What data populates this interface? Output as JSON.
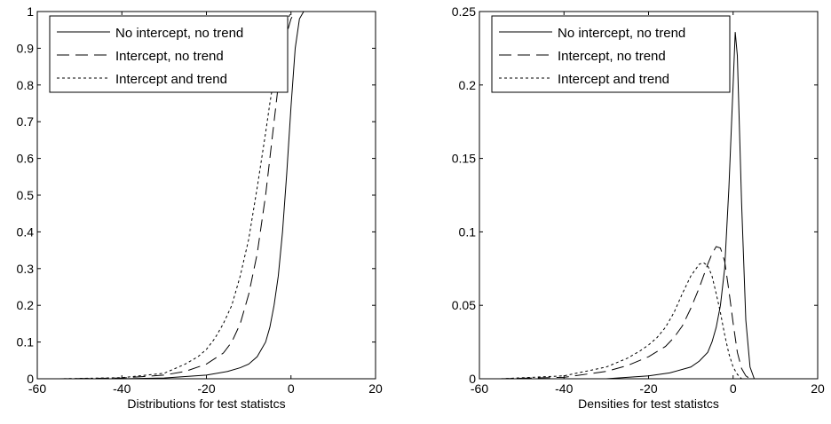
{
  "chart_data": [
    {
      "type": "line",
      "title": "",
      "xlabel": "Distributions for test statistcs",
      "ylabel": "",
      "xlim": [
        -60,
        20
      ],
      "ylim": [
        0,
        1
      ],
      "xticks": [
        -60,
        -40,
        -20,
        0,
        20
      ],
      "yticks": [
        0,
        0.1,
        0.2,
        0.3,
        0.4,
        0.5,
        0.6,
        0.7,
        0.8,
        0.9,
        1
      ],
      "xtick_labels": [
        "-60",
        "-40",
        "-20",
        "0",
        "20"
      ],
      "ytick_labels": [
        "0",
        "0.1",
        "0.2",
        "0.3",
        "0.4",
        "0.5",
        "0.6",
        "0.7",
        "0.8",
        "0.9",
        "1"
      ],
      "grid": false,
      "legend_position": "top-left",
      "series": [
        {
          "name": "No intercept, no trend",
          "style": "solid",
          "x": [
            -55,
            -40,
            -30,
            -20,
            -15,
            -12,
            -10,
            -8,
            -6,
            -5,
            -4,
            -3,
            -2,
            -1,
            0,
            1,
            2,
            3
          ],
          "y": [
            0.0,
            0.0,
            0.002,
            0.01,
            0.02,
            0.03,
            0.04,
            0.06,
            0.1,
            0.14,
            0.2,
            0.28,
            0.4,
            0.56,
            0.74,
            0.9,
            0.98,
            1.0
          ]
        },
        {
          "name": "Intercept, no trend",
          "style": "dashed",
          "x": [
            -55,
            -40,
            -30,
            -25,
            -20,
            -16,
            -14,
            -12,
            -10,
            -8,
            -6,
            -5,
            -4,
            -3,
            -2,
            -1,
            0,
            1
          ],
          "y": [
            0.0,
            0.002,
            0.01,
            0.02,
            0.04,
            0.07,
            0.1,
            0.15,
            0.23,
            0.34,
            0.5,
            0.6,
            0.7,
            0.8,
            0.88,
            0.94,
            0.98,
            1.0
          ]
        },
        {
          "name": "Intercept and trend",
          "style": "dotted",
          "x": [
            -55,
            -40,
            -30,
            -25,
            -22,
            -20,
            -18,
            -16,
            -14,
            -12,
            -10,
            -8,
            -6,
            -5,
            -4,
            -3,
            -2,
            -1,
            0
          ],
          "y": [
            0.0,
            0.003,
            0.015,
            0.04,
            0.06,
            0.08,
            0.11,
            0.15,
            0.2,
            0.28,
            0.38,
            0.52,
            0.67,
            0.75,
            0.82,
            0.88,
            0.93,
            0.97,
            1.0
          ]
        }
      ]
    },
    {
      "type": "line",
      "title": "",
      "xlabel": "Densities for test statistcs",
      "ylabel": "",
      "xlim": [
        -60,
        20
      ],
      "ylim": [
        0,
        0.25
      ],
      "xticks": [
        -60,
        -40,
        -20,
        0,
        20
      ],
      "yticks": [
        0,
        0.05,
        0.1,
        0.15,
        0.2,
        0.25
      ],
      "xtick_labels": [
        "-60",
        "-40",
        "-20",
        "0",
        "20"
      ],
      "ytick_labels": [
        "0",
        "0.05",
        "0.1",
        "0.15",
        "0.2",
        "0.25"
      ],
      "grid": false,
      "legend_position": "top-left",
      "series": [
        {
          "name": "No intercept, no trend",
          "style": "solid",
          "x": [
            -55,
            -30,
            -20,
            -15,
            -10,
            -8,
            -6,
            -5,
            -4,
            -3,
            -2,
            -1,
            0,
            0.5,
            1,
            2,
            3,
            4,
            5
          ],
          "y": [
            0.0,
            0.0,
            0.002,
            0.004,
            0.008,
            0.012,
            0.018,
            0.025,
            0.035,
            0.05,
            0.075,
            0.13,
            0.2,
            0.236,
            0.22,
            0.12,
            0.04,
            0.008,
            0.0
          ]
        },
        {
          "name": "Intercept, no trend",
          "style": "dashed",
          "x": [
            -55,
            -40,
            -30,
            -25,
            -20,
            -16,
            -14,
            -12,
            -10,
            -8,
            -6,
            -5,
            -4,
            -3,
            -2,
            -1,
            0,
            1,
            2,
            3,
            4
          ],
          "y": [
            0.0,
            0.001,
            0.005,
            0.009,
            0.015,
            0.022,
            0.028,
            0.036,
            0.048,
            0.062,
            0.078,
            0.085,
            0.09,
            0.089,
            0.08,
            0.06,
            0.038,
            0.018,
            0.007,
            0.002,
            0.0
          ]
        },
        {
          "name": "Intercept and trend",
          "style": "dotted",
          "x": [
            -55,
            -40,
            -30,
            -25,
            -22,
            -20,
            -18,
            -16,
            -14,
            -12,
            -10,
            -8,
            -7,
            -6,
            -5,
            -4,
            -3,
            -2,
            -1,
            0,
            1,
            2
          ],
          "y": [
            0.0,
            0.002,
            0.008,
            0.014,
            0.019,
            0.023,
            0.028,
            0.035,
            0.045,
            0.058,
            0.07,
            0.078,
            0.079,
            0.077,
            0.07,
            0.058,
            0.045,
            0.03,
            0.017,
            0.008,
            0.003,
            0.0
          ]
        }
      ]
    }
  ]
}
